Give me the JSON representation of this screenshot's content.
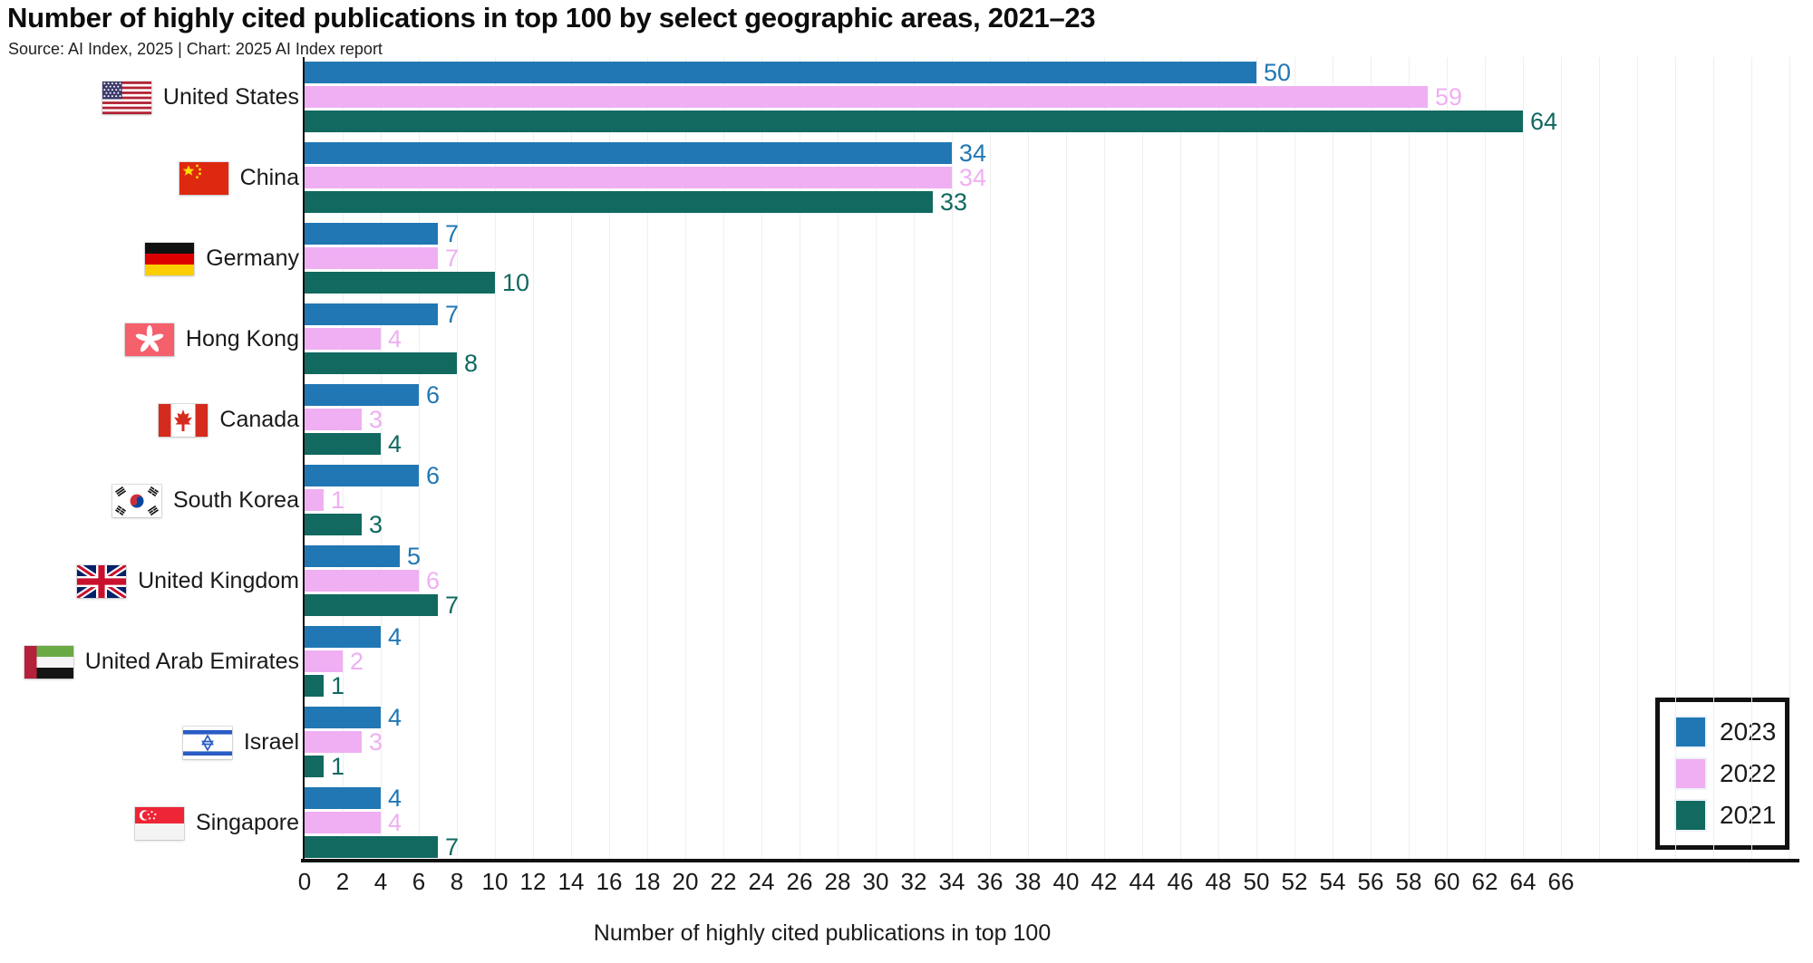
{
  "header": {
    "title": "Number of highly cited publications in top 100 by select geographic areas, 2021–23",
    "source": "Source: AI Index, 2025 | Chart: 2025 AI Index report"
  },
  "chart_data": {
    "type": "bar",
    "orientation": "horizontal",
    "title": "Number of highly cited publications in top 100 by select geographic areas, 2021–23",
    "xlabel": "Number of highly cited publications in top 100",
    "ylabel": "",
    "xlim": [
      0,
      66
    ],
    "grid": "vertical",
    "categories": [
      "United States",
      "China",
      "Germany",
      "Hong Kong",
      "Canada",
      "South Korea",
      "United Kingdom",
      "United Arab Emirates",
      "Israel",
      "Singapore"
    ],
    "category_flags": [
      "us",
      "cn",
      "de",
      "hk",
      "ca",
      "kr",
      "gb",
      "ae",
      "il",
      "sg"
    ],
    "series": [
      {
        "name": "2023",
        "color": "#2177b4",
        "values": [
          50,
          34,
          7,
          7,
          6,
          6,
          5,
          4,
          4,
          4
        ]
      },
      {
        "name": "2022",
        "color": "#efaff2",
        "values": [
          59,
          34,
          7,
          4,
          3,
          1,
          6,
          2,
          3,
          4
        ]
      },
      {
        "name": "2021",
        "color": "#116960",
        "values": [
          64,
          33,
          10,
          8,
          4,
          3,
          7,
          1,
          1,
          7
        ]
      }
    ],
    "x_ticks": [
      0,
      2,
      4,
      6,
      8,
      10,
      12,
      14,
      16,
      18,
      20,
      22,
      24,
      26,
      28,
      30,
      32,
      34,
      36,
      38,
      40,
      42,
      44,
      46,
      48,
      50,
      52,
      54,
      56,
      58,
      60,
      62,
      64,
      66
    ],
    "legend": {
      "position": "right",
      "entries": [
        "2023",
        "2022",
        "2021"
      ],
      "border_color": "#111111"
    }
  }
}
